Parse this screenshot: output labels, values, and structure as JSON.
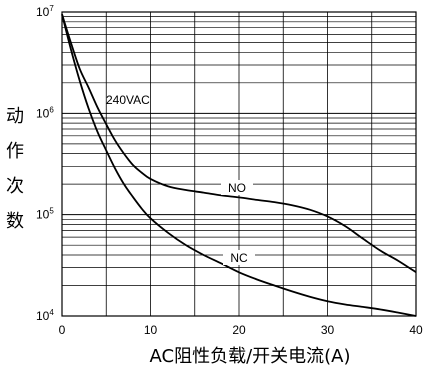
{
  "chart_data": {
    "type": "line",
    "title": "",
    "xlabel": "AC阻性负载/开关电流(A)",
    "ylabel": "动作次数",
    "ylabel_chars": [
      "动",
      "作",
      "次",
      "数"
    ],
    "xlim": [
      0,
      40
    ],
    "ylim": [
      10000,
      10000000
    ],
    "yscale": "log",
    "x_ticks": [
      "0",
      "10",
      "20",
      "30",
      "40"
    ],
    "y_ticks": [
      {
        "base": "10",
        "exp": "4"
      },
      {
        "base": "10",
        "exp": "5"
      },
      {
        "base": "10",
        "exp": "6"
      },
      {
        "base": "10",
        "exp": "7"
      }
    ],
    "grid": true,
    "annotation": "240VAC",
    "series": [
      {
        "name": "NO",
        "x": [
          0,
          1,
          2,
          3,
          4,
          5,
          6,
          7,
          8,
          9,
          10,
          12,
          14,
          16,
          18,
          20,
          22,
          24,
          26,
          28,
          30,
          32,
          34,
          36,
          38,
          40
        ],
        "y": [
          9500000,
          5000000,
          2750000,
          1800000,
          1150000,
          780000,
          540000,
          400000,
          310000,
          260000,
          225000,
          190000,
          175000,
          165000,
          155000,
          148000,
          140000,
          133000,
          124000,
          112000,
          96000,
          77000,
          58000,
          44000,
          35000,
          27000
        ]
      },
      {
        "name": "NC",
        "x": [
          0,
          1,
          2,
          3,
          4,
          5,
          6,
          7,
          8,
          9,
          10,
          12,
          14,
          16,
          18,
          20,
          22,
          24,
          26,
          28,
          30,
          32,
          34,
          36,
          38,
          40
        ],
        "y": [
          9500000,
          4300000,
          2100000,
          1120000,
          660000,
          430000,
          285000,
          200000,
          150000,
          115000,
          92000,
          66000,
          50000,
          40000,
          33000,
          27000,
          23000,
          20000,
          17500,
          15500,
          14000,
          13000,
          12300,
          11600,
          10800,
          10000
        ]
      }
    ]
  }
}
